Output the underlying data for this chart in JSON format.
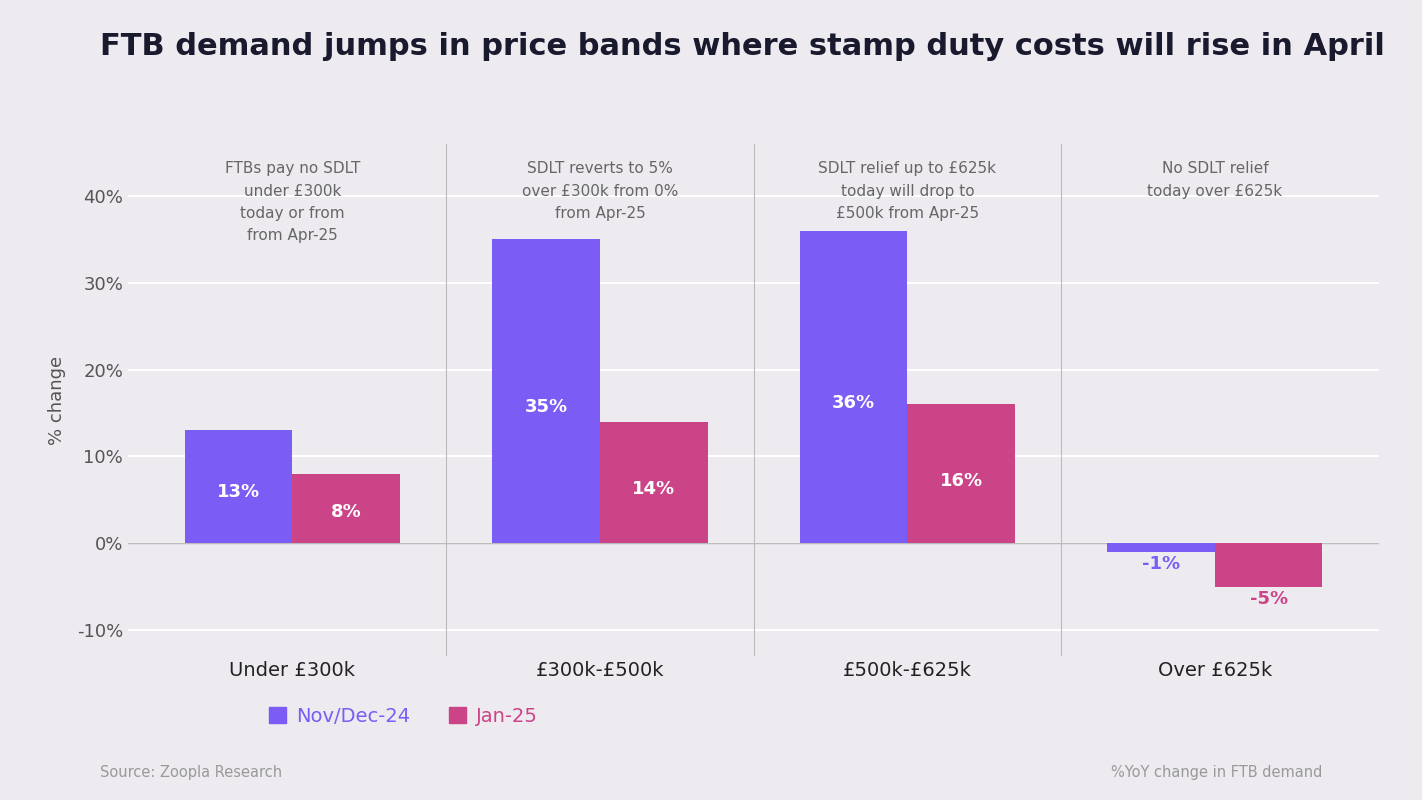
{
  "title": "FTB demand jumps in price bands where stamp duty costs will rise in April",
  "categories": [
    "Under £300k",
    "£300k-£500k",
    "£500k-£625k",
    "Over £625k"
  ],
  "nov_dec_values": [
    13,
    35,
    36,
    -1
  ],
  "jan_values": [
    8,
    14,
    16,
    -5
  ],
  "color_purple": "#7B5CF5",
  "color_pink": "#CC4488",
  "background_color": "#EDEAF0",
  "ylim": [
    -13,
    46
  ],
  "yticks": [
    -10,
    0,
    10,
    20,
    30,
    40
  ],
  "ylabel": "% change",
  "legend_nov": "Nov/Dec-24",
  "legend_jan": "Jan-25",
  "annotations": [
    {
      "text": "FTBs pay no SDLT\nunder £300k\ntoday or from\nfrom Apr-25",
      "x": 0,
      "ha": "center"
    },
    {
      "text": "SDLT reverts to 5%\nover £300k from 0%\nfrom Apr-25",
      "x": 1,
      "ha": "center"
    },
    {
      "text": "SDLT relief up to £625k\ntoday will drop to\n£500k from Apr-25",
      "x": 2,
      "ha": "center"
    },
    {
      "text": "No SDLT relief\ntoday over £625k",
      "x": 3,
      "ha": "center"
    }
  ],
  "source_text": "Source: Zoopla Research",
  "footnote_text": "%YoY change in FTB demand",
  "bar_width": 0.35,
  "divider_color": "#BBBBBB",
  "title_fontsize": 22,
  "axis_fontsize": 13,
  "annotation_fontsize": 11,
  "label_fontsize": 13
}
